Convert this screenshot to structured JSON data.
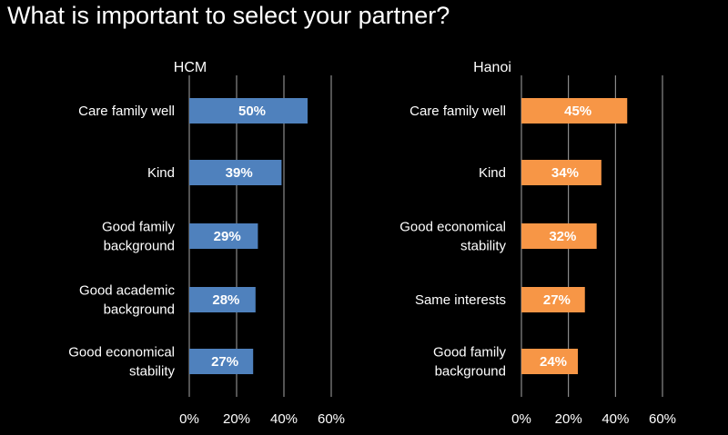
{
  "page": {
    "title": "What is important to select your partner?"
  },
  "chart_data": [
    {
      "type": "bar",
      "orientation": "horizontal",
      "title": "HCM",
      "categories": [
        [
          "Care family well"
        ],
        [
          "Kind"
        ],
        [
          "Good family",
          "background"
        ],
        [
          "Good academic",
          "background"
        ],
        [
          "Good economical",
          "stability"
        ]
      ],
      "values": [
        50,
        39,
        29,
        28,
        27
      ],
      "value_labels": [
        "50%",
        "39%",
        "29%",
        "28%",
        "27%"
      ],
      "xlim": [
        0,
        60
      ],
      "x_ticks": [
        0,
        20,
        40,
        60
      ],
      "x_tick_labels": [
        "0%",
        "20%",
        "40%",
        "60%"
      ],
      "grid": true,
      "color": "#4f81bd"
    },
    {
      "type": "bar",
      "orientation": "horizontal",
      "title": "Hanoi",
      "categories": [
        [
          "Care family well"
        ],
        [
          "Kind"
        ],
        [
          "Good economical",
          "stability"
        ],
        [
          "Same interests"
        ],
        [
          "Good family",
          "background"
        ]
      ],
      "values": [
        45,
        34,
        32,
        27,
        24
      ],
      "value_labels": [
        "45%",
        "34%",
        "32%",
        "27%",
        "24%"
      ],
      "xlim": [
        0,
        60
      ],
      "x_ticks": [
        0,
        20,
        40,
        60
      ],
      "x_tick_labels": [
        "0%",
        "20%",
        "40%",
        "60%"
      ],
      "grid": true,
      "color": "#f79646"
    }
  ]
}
